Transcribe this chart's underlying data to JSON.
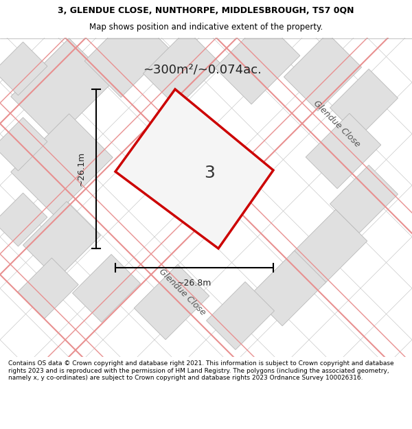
{
  "title_line1": "3, GLENDUE CLOSE, NUNTHORPE, MIDDLESBROUGH, TS7 0QN",
  "title_line2": "Map shows position and indicative extent of the property.",
  "area_text": "~300m²/~0.074ac.",
  "width_label": "~26.8m",
  "height_label": "~26.1m",
  "plot_label": "3",
  "road_label_1": "Glendue Close",
  "road_label_2": "Glendue Close",
  "footer_text": "Contains OS data © Crown copyright and database right 2021. This information is subject to Crown copyright and database rights 2023 and is reproduced with the permission of HM Land Registry. The polygons (including the associated geometry, namely x, y co-ordinates) are subject to Crown copyright and database rights 2023 Ordnance Survey 100026316.",
  "bg_color": "#f0f0f0",
  "map_bg": "#e8e8e8",
  "polygon_color": "#cc0000",
  "grid_color_dark": "#d0d0d0",
  "grid_color_light": "#f0b0b0",
  "title_bg": "#ffffff",
  "footer_bg": "#ffffff"
}
